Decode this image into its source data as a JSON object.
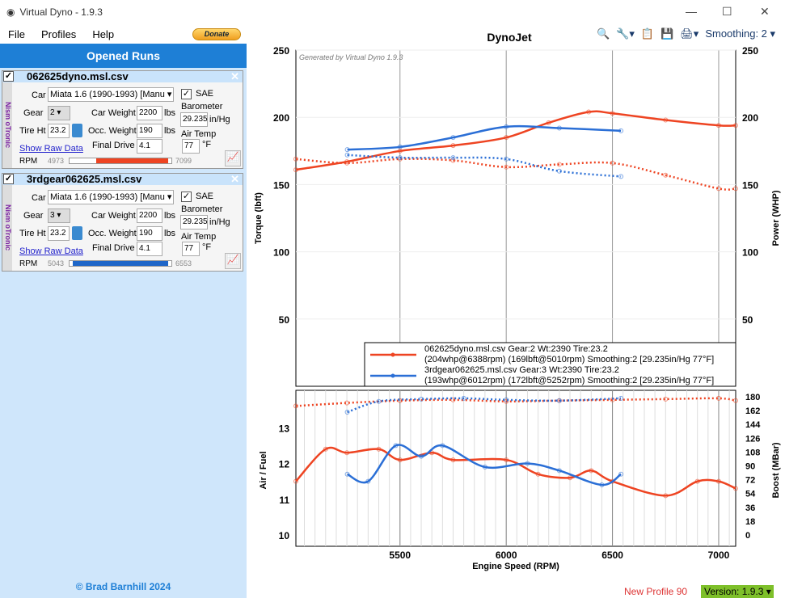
{
  "window": {
    "title": "Virtual Dyno - 1.9.3"
  },
  "menu": [
    "File",
    "Profiles",
    "Help"
  ],
  "donate_label": "Donate",
  "sidebar": {
    "header": "Opened Runs",
    "footer": "© Brad Barnhill 2024",
    "runs": [
      {
        "file": "062625dyno.msl.csv",
        "side": "Nism oTronic",
        "car_label": "Car",
        "car": "Miata 1.6 (1990-1993) [Manu",
        "sae": "SAE",
        "gear_label": "Gear",
        "gear": "2",
        "weight_label": "Car Weight",
        "weight": "2200",
        "lbs": "lbs",
        "baro_label": "Barometer",
        "baro": "29.235",
        "baro_unit": "in/Hg",
        "tire_label": "Tire Ht",
        "tire": "23.2",
        "occ_label": "Occ. Weight",
        "occ": "190",
        "air_label": "Air Temp",
        "raw": "Show Raw Data",
        "fd_label": "Final Drive",
        "fd": "4.1",
        "air": "77",
        "air_unit": "°F",
        "rpm_label": "RPM",
        "rpm_min": "4973",
        "rpm_max": "7099",
        "color": "#ee4422"
      },
      {
        "file": "3rdgear062625.msl.csv",
        "side": "Nism oTronic",
        "car_label": "Car",
        "car": "Miata 1.6 (1990-1993) [Manu",
        "sae": "SAE",
        "gear_label": "Gear",
        "gear": "3",
        "weight_label": "Car Weight",
        "weight": "2200",
        "lbs": "lbs",
        "baro_label": "Barometer",
        "baro": "29.235",
        "baro_unit": "in/Hg",
        "tire_label": "Tire Ht",
        "tire": "23.2",
        "occ_label": "Occ. Weight",
        "occ": "190",
        "air_label": "Air Temp",
        "raw": "Show Raw Data",
        "fd_label": "Final Drive",
        "fd": "4.1",
        "air": "77",
        "air_unit": "°F",
        "rpm_label": "RPM",
        "rpm_min": "5043",
        "rpm_max": "6553",
        "color": "#1e66c8"
      }
    ]
  },
  "toolbar": {
    "smoothing": "Smoothing: 2"
  },
  "status": {
    "profile": "New Profile 90",
    "version": "Version: 1.9.3"
  },
  "chart_data": [
    {
      "type": "line",
      "title": "DynoJet",
      "watermark": "Generated by Virtual Dyno 1.9.3",
      "ylabel": "Torque (lbft)",
      "y2label": "Power (WHP)",
      "xlim": [
        5010,
        7080
      ],
      "ylim": [
        0,
        250
      ],
      "yticks": [
        50,
        100,
        150,
        200,
        250
      ],
      "legend": [
        "062625dyno.msl.csv Gear:2 Wt:2390 Tire:23.2",
        "(204whp@6388rpm) (169lbft@5010rpm) Smoothing:2 [29.235in/Hg 77°F]",
        "3rdgear062625.msl.csv Gear:3 Wt:2390 Tire:23.2",
        "(193whp@6012rpm) (172lbft@5252rpm) Smoothing:2 [29.235in/Hg 77°F]"
      ],
      "series": [
        {
          "name": "062625 power",
          "color": "#ee4422",
          "dash": false,
          "x": [
            5010,
            5250,
            5500,
            5750,
            6000,
            6200,
            6388,
            6500,
            6750,
            7000,
            7080
          ],
          "y": [
            161,
            167,
            175,
            179,
            185,
            196,
            204,
            203,
            198,
            194,
            194
          ]
        },
        {
          "name": "062625 torque",
          "color": "#ee4422",
          "dash": true,
          "x": [
            5010,
            5250,
            5500,
            5750,
            6000,
            6250,
            6500,
            6750,
            7000,
            7080
          ],
          "y": [
            169,
            166,
            169,
            168,
            163,
            165,
            166,
            157,
            147,
            147
          ]
        },
        {
          "name": "3rdgear power",
          "color": "#2b6fd6",
          "dash": false,
          "x": [
            5252,
            5500,
            5750,
            6000,
            6250,
            6540
          ],
          "y": [
            176,
            178,
            185,
            193,
            192,
            190
          ]
        },
        {
          "name": "3rdgear torque",
          "color": "#2b6fd6",
          "dash": true,
          "x": [
            5252,
            5500,
            5750,
            6000,
            6250,
            6540
          ],
          "y": [
            172,
            170,
            170,
            169,
            160,
            156
          ]
        }
      ]
    },
    {
      "type": "line",
      "xlabel": "Engine Speed (RPM)",
      "ylabel": "Air / Fuel",
      "y2label": "Boost (MBar)",
      "xticks": [
        5500,
        6000,
        6500,
        7000
      ],
      "ylim": [
        10,
        14
      ],
      "yticks": [
        10,
        11,
        12,
        13
      ],
      "y2lim": [
        0,
        180
      ],
      "y2ticks": [
        0,
        18,
        36,
        54,
        72,
        90,
        108,
        126,
        144,
        162,
        180
      ],
      "series": [
        {
          "name": "062625 AFR",
          "color": "#ee4422",
          "dash": false,
          "axis": "y",
          "x": [
            5010,
            5150,
            5250,
            5400,
            5500,
            5650,
            5750,
            6000,
            6150,
            6300,
            6400,
            6500,
            6750,
            6900,
            7000,
            7080
          ],
          "y": [
            11.5,
            12.4,
            12.3,
            12.4,
            12.1,
            12.3,
            12.1,
            12.1,
            11.7,
            11.6,
            11.8,
            11.5,
            11.1,
            11.5,
            11.5,
            11.3
          ]
        },
        {
          "name": "3rdgear AFR",
          "color": "#2b6fd6",
          "dash": false,
          "axis": "y",
          "x": [
            5252,
            5350,
            5480,
            5600,
            5700,
            5900,
            6100,
            6250,
            6450,
            6540
          ],
          "y": [
            11.7,
            11.5,
            12.5,
            12.2,
            12.5,
            11.9,
            12.0,
            11.8,
            11.4,
            11.7
          ]
        },
        {
          "name": "062625 boost",
          "color": "#ee4422",
          "dash": true,
          "axis": "y2",
          "x": [
            5010,
            5250,
            5500,
            5750,
            6000,
            6250,
            6500,
            6750,
            7000,
            7080
          ],
          "y": [
            168,
            172,
            175,
            176,
            174,
            175,
            176,
            177,
            178,
            175
          ]
        },
        {
          "name": "3rdgear boost",
          "color": "#2b6fd6",
          "dash": true,
          "axis": "y2",
          "x": [
            5252,
            5400,
            5600,
            5800,
            6000,
            6250,
            6540
          ],
          "y": [
            160,
            174,
            177,
            178,
            176,
            175,
            178
          ]
        }
      ]
    }
  ]
}
